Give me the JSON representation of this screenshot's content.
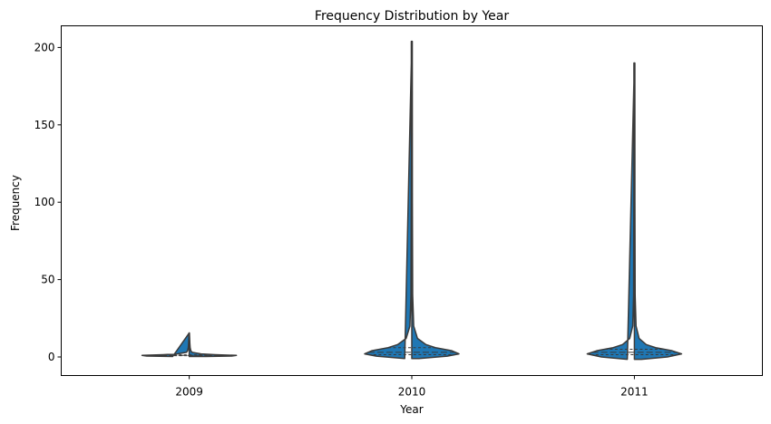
{
  "chart_data": {
    "type": "violin",
    "title": "Frequency Distribution by Year",
    "xlabel": "Year",
    "ylabel": "Frequency",
    "categories": [
      "2009",
      "2010",
      "2011"
    ],
    "ylim": [
      -12,
      214
    ],
    "yticks": [
      0,
      50,
      100,
      150,
      200
    ],
    "grid": false,
    "legend": "none",
    "inner": "quartile",
    "colors": {
      "fill": "#1f77b4",
      "edge": "#3a3a3a"
    },
    "violins": [
      {
        "category": "2009",
        "min": 0.3,
        "max": 15.5,
        "q1": 0.8,
        "median": 1.0,
        "q3": 1.4,
        "profile": [
          [
            0.3,
            0.35
          ],
          [
            0.6,
            0.9
          ],
          [
            1.0,
            1.0
          ],
          [
            1.5,
            0.55
          ],
          [
            2.0,
            0.25
          ],
          [
            3.0,
            0.06
          ],
          [
            4.0,
            0.035
          ],
          [
            6.0,
            0.02
          ],
          [
            9.0,
            0.013
          ],
          [
            12.0,
            0.009
          ],
          [
            15.5,
            0.004
          ]
        ]
      },
      {
        "category": "2010",
        "min": -1.0,
        "max": 204,
        "q1": 1.5,
        "median": 3.0,
        "q3": 6.0,
        "profile": [
          [
            -1.0,
            0.15
          ],
          [
            0.5,
            0.75
          ],
          [
            2.0,
            1.0
          ],
          [
            4.0,
            0.85
          ],
          [
            6.0,
            0.5
          ],
          [
            8.0,
            0.3
          ],
          [
            12.0,
            0.12
          ],
          [
            20.0,
            0.04
          ],
          [
            40.0,
            0.018
          ],
          [
            100.0,
            0.012
          ],
          [
            204.0,
            0.01
          ]
        ]
      },
      {
        "category": "2011",
        "min": -1.5,
        "max": 190,
        "q1": 1.5,
        "median": 3.0,
        "q3": 5.0,
        "profile": [
          [
            -1.5,
            0.15
          ],
          [
            0.0,
            0.7
          ],
          [
            2.0,
            1.0
          ],
          [
            4.0,
            0.8
          ],
          [
            6.0,
            0.45
          ],
          [
            8.0,
            0.25
          ],
          [
            12.0,
            0.1
          ],
          [
            20.0,
            0.035
          ],
          [
            40.0,
            0.016
          ],
          [
            100.0,
            0.011
          ],
          [
            190.0,
            0.01
          ]
        ]
      }
    ]
  }
}
